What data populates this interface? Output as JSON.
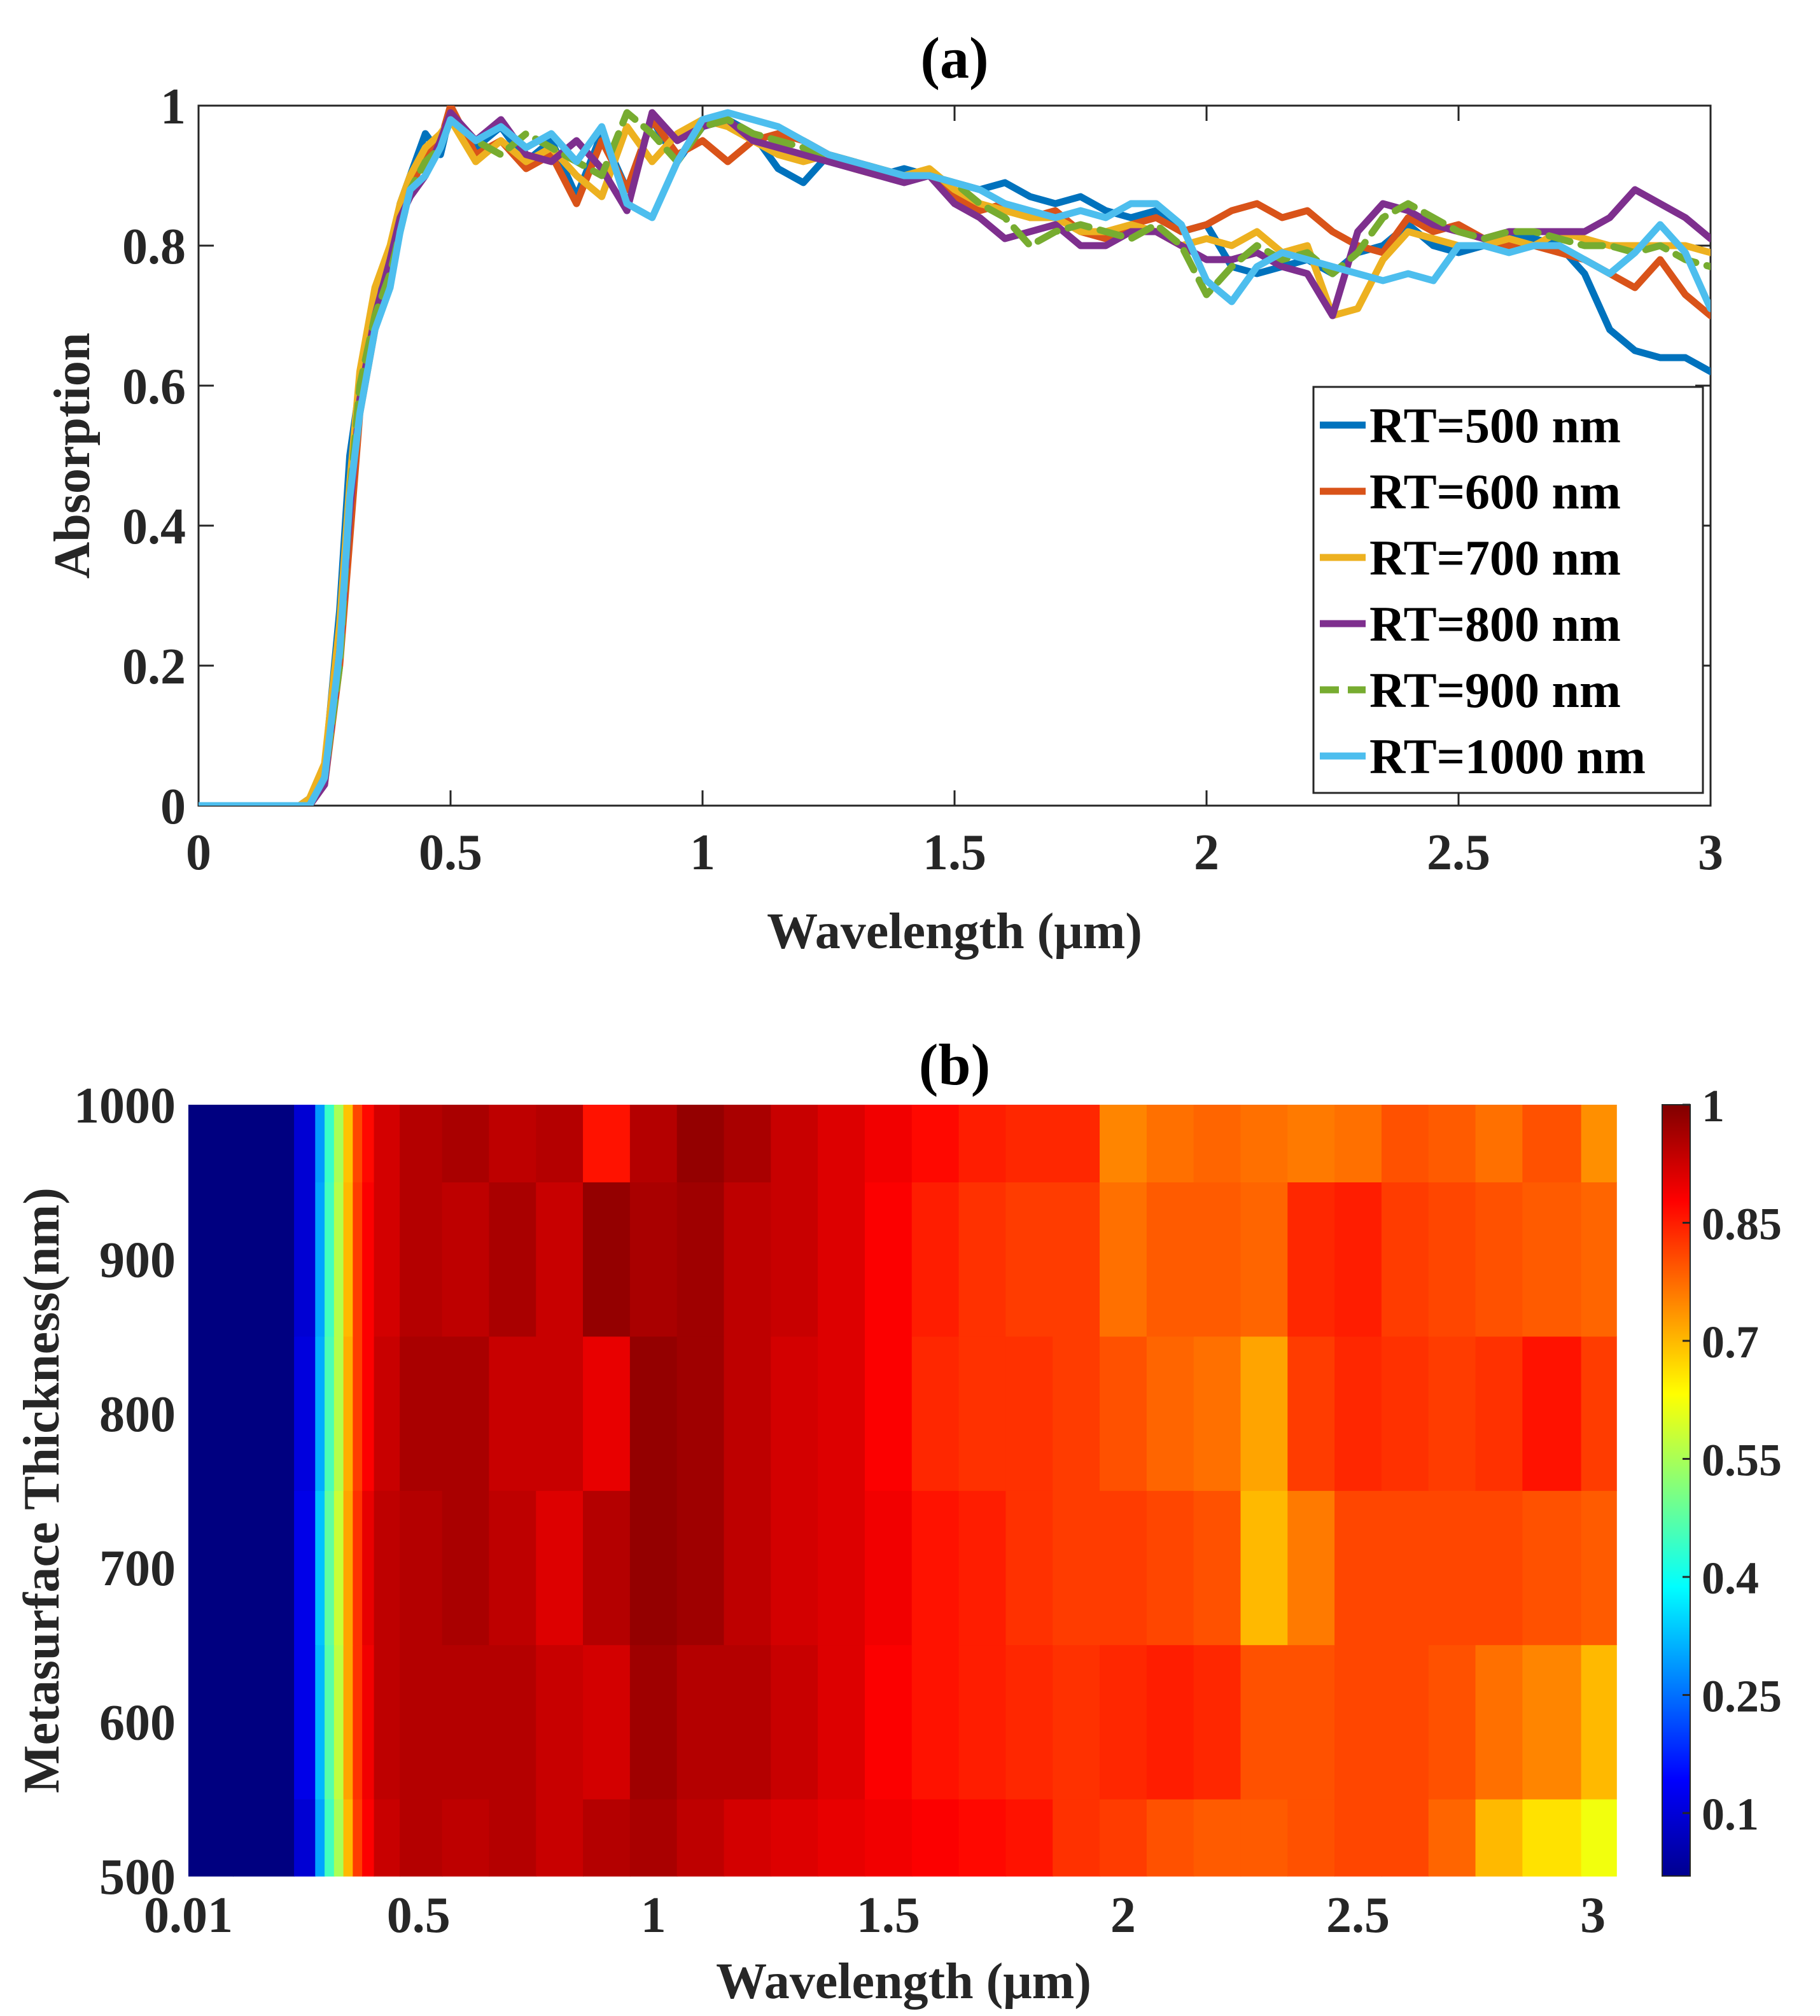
{
  "chart_data": [
    {
      "panel": "(a)",
      "type": "line",
      "title": "(a)",
      "xlabel": "Wavelength (μm)",
      "ylabel": "Absorption",
      "xlim": [
        0,
        3
      ],
      "ylim": [
        0,
        1
      ],
      "xticks": [
        0,
        0.5,
        1,
        1.5,
        2,
        2.5,
        3
      ],
      "xtick_labels": [
        "0",
        "0.5",
        "1",
        "1.5",
        "2",
        "2.5",
        "3"
      ],
      "yticks": [
        0,
        0.2,
        0.4,
        0.6,
        0.8,
        1
      ],
      "ytick_labels": [
        "0",
        "0.2",
        "0.4",
        "0.6",
        "0.8",
        "1"
      ],
      "grid": false,
      "legend_position": "bottom-right",
      "x": [
        0,
        0.2,
        0.22,
        0.25,
        0.28,
        0.3,
        0.32,
        0.35,
        0.38,
        0.4,
        0.42,
        0.45,
        0.48,
        0.5,
        0.55,
        0.6,
        0.65,
        0.7,
        0.75,
        0.8,
        0.85,
        0.9,
        0.95,
        1.0,
        1.05,
        1.1,
        1.15,
        1.2,
        1.25,
        1.3,
        1.35,
        1.4,
        1.45,
        1.5,
        1.55,
        1.6,
        1.65,
        1.7,
        1.75,
        1.8,
        1.85,
        1.9,
        1.95,
        2.0,
        2.05,
        2.1,
        2.15,
        2.2,
        2.25,
        2.3,
        2.35,
        2.4,
        2.45,
        2.5,
        2.55,
        2.6,
        2.65,
        2.7,
        2.75,
        2.8,
        2.85,
        2.9,
        2.95,
        3.0
      ],
      "series": [
        {
          "name": "RT=500 nm",
          "color": "#0072BD",
          "dash": "solid",
          "values": [
            0,
            0,
            0.01,
            0.05,
            0.28,
            0.5,
            0.6,
            0.72,
            0.78,
            0.86,
            0.9,
            0.96,
            0.93,
            0.99,
            0.94,
            0.97,
            0.92,
            0.95,
            0.87,
            0.96,
            0.88,
            0.98,
            0.92,
            0.97,
            0.98,
            0.96,
            0.91,
            0.89,
            0.93,
            0.92,
            0.9,
            0.91,
            0.9,
            0.89,
            0.88,
            0.89,
            0.87,
            0.86,
            0.87,
            0.85,
            0.84,
            0.85,
            0.82,
            0.83,
            0.77,
            0.76,
            0.77,
            0.78,
            0.76,
            0.79,
            0.8,
            0.83,
            0.8,
            0.79,
            0.8,
            0.81,
            0.81,
            0.8,
            0.76,
            0.68,
            0.65,
            0.64,
            0.64,
            0.62
          ]
        },
        {
          "name": "RT=600 nm",
          "color": "#D95319",
          "dash": "solid",
          "values": [
            0,
            0,
            0.0,
            0.03,
            0.2,
            0.38,
            0.56,
            0.68,
            0.76,
            0.84,
            0.88,
            0.93,
            0.95,
            1.0,
            0.93,
            0.95,
            0.91,
            0.93,
            0.86,
            0.95,
            0.88,
            0.98,
            0.93,
            0.95,
            0.92,
            0.95,
            0.96,
            0.95,
            0.93,
            0.92,
            0.91,
            0.9,
            0.9,
            0.87,
            0.85,
            0.86,
            0.84,
            0.85,
            0.82,
            0.81,
            0.83,
            0.84,
            0.82,
            0.83,
            0.85,
            0.86,
            0.84,
            0.85,
            0.82,
            0.8,
            0.79,
            0.84,
            0.82,
            0.83,
            0.81,
            0.8,
            0.8,
            0.79,
            0.78,
            0.76,
            0.74,
            0.78,
            0.73,
            0.7
          ]
        },
        {
          "name": "RT=700 nm",
          "color": "#EDB120",
          "dash": "solid",
          "values": [
            0,
            0,
            0.01,
            0.06,
            0.26,
            0.46,
            0.62,
            0.74,
            0.8,
            0.86,
            0.9,
            0.94,
            0.96,
            0.98,
            0.92,
            0.95,
            0.92,
            0.94,
            0.9,
            0.87,
            0.97,
            0.92,
            0.96,
            0.98,
            0.97,
            0.95,
            0.93,
            0.92,
            0.93,
            0.91,
            0.9,
            0.9,
            0.91,
            0.88,
            0.86,
            0.85,
            0.84,
            0.84,
            0.82,
            0.82,
            0.83,
            0.82,
            0.8,
            0.81,
            0.8,
            0.82,
            0.79,
            0.8,
            0.7,
            0.71,
            0.78,
            0.82,
            0.81,
            0.8,
            0.8,
            0.81,
            0.8,
            0.82,
            0.81,
            0.8,
            0.8,
            0.8,
            0.8,
            0.79
          ]
        },
        {
          "name": "RT=800 nm",
          "color": "#7E2F8E",
          "dash": "solid",
          "values": [
            0,
            0,
            0.0,
            0.03,
            0.22,
            0.42,
            0.58,
            0.7,
            0.78,
            0.84,
            0.87,
            0.9,
            0.95,
            0.99,
            0.95,
            0.98,
            0.93,
            0.92,
            0.95,
            0.91,
            0.85,
            0.99,
            0.95,
            0.97,
            0.98,
            0.95,
            0.94,
            0.93,
            0.92,
            0.91,
            0.9,
            0.89,
            0.9,
            0.86,
            0.84,
            0.81,
            0.82,
            0.83,
            0.8,
            0.8,
            0.82,
            0.82,
            0.8,
            0.78,
            0.78,
            0.79,
            0.77,
            0.76,
            0.7,
            0.82,
            0.86,
            0.85,
            0.83,
            0.82,
            0.81,
            0.82,
            0.82,
            0.82,
            0.82,
            0.84,
            0.88,
            0.86,
            0.84,
            0.81
          ]
        },
        {
          "name": "RT=900 nm",
          "color": "#77AC30",
          "dash": "dashed",
          "values": [
            0,
            0,
            0.0,
            0.04,
            0.2,
            0.44,
            0.6,
            0.7,
            0.76,
            0.82,
            0.88,
            0.92,
            0.94,
            0.98,
            0.95,
            0.93,
            0.96,
            0.94,
            0.92,
            0.9,
            0.99,
            0.96,
            0.92,
            0.97,
            0.98,
            0.96,
            0.95,
            0.94,
            0.93,
            0.92,
            0.91,
            0.9,
            0.9,
            0.89,
            0.86,
            0.84,
            0.8,
            0.82,
            0.83,
            0.82,
            0.81,
            0.83,
            0.8,
            0.73,
            0.77,
            0.8,
            0.78,
            0.79,
            0.76,
            0.79,
            0.84,
            0.86,
            0.84,
            0.82,
            0.81,
            0.82,
            0.82,
            0.81,
            0.8,
            0.8,
            0.79,
            0.8,
            0.78,
            0.77
          ]
        },
        {
          "name": "RT=1000 nm",
          "color": "#4DBEEE",
          "dash": "solid",
          "values": [
            0,
            0,
            0.0,
            0.04,
            0.22,
            0.44,
            0.56,
            0.68,
            0.74,
            0.82,
            0.88,
            0.9,
            0.94,
            0.98,
            0.95,
            0.97,
            0.94,
            0.96,
            0.92,
            0.97,
            0.86,
            0.84,
            0.92,
            0.98,
            0.99,
            0.98,
            0.97,
            0.95,
            0.93,
            0.92,
            0.91,
            0.9,
            0.9,
            0.89,
            0.88,
            0.86,
            0.85,
            0.84,
            0.85,
            0.84,
            0.86,
            0.86,
            0.83,
            0.75,
            0.72,
            0.77,
            0.79,
            0.78,
            0.77,
            0.76,
            0.75,
            0.76,
            0.75,
            0.8,
            0.8,
            0.79,
            0.8,
            0.8,
            0.78,
            0.76,
            0.79,
            0.83,
            0.79,
            0.71
          ]
        }
      ]
    },
    {
      "panel": "(b)",
      "type": "heatmap",
      "title": "(b)",
      "xlabel": "Wavelength (μm)",
      "ylabel": "Metasurface Thickness(nm)",
      "xlim": [
        0.01,
        3.05
      ],
      "ylim": [
        500,
        1000
      ],
      "xticks": [
        0.01,
        0.5,
        1,
        1.5,
        2,
        2.5,
        3
      ],
      "xtick_labels": [
        "0.01",
        "0.5",
        "1",
        "1.5",
        "2",
        "2.5",
        "3"
      ],
      "yticks": [
        500,
        600,
        700,
        800,
        900,
        1000
      ],
      "ytick_labels": [
        "500",
        "600",
        "700",
        "800",
        "900",
        "1000"
      ],
      "colormap": "jet",
      "colorbar_range": [
        0.02,
        1
      ],
      "colorbar_ticks": [
        0.1,
        0.25,
        0.4,
        0.55,
        0.7,
        0.85,
        1
      ],
      "colorbar_tick_labels": [
        "0.1",
        "0.25",
        "0.4",
        "0.55",
        "0.7",
        "0.85",
        "1"
      ],
      "x": [
        0.01,
        0.2,
        0.27,
        0.29,
        0.31,
        0.33,
        0.35,
        0.37,
        0.39,
        0.42,
        0.5,
        0.6,
        0.7,
        0.8,
        0.9,
        1.0,
        1.1,
        1.2,
        1.3,
        1.4,
        1.5,
        1.6,
        1.7,
        1.8,
        1.9,
        2.0,
        2.1,
        2.2,
        2.3,
        2.4,
        2.5,
        2.6,
        2.7,
        2.8,
        2.9,
        3.05
      ],
      "y": [
        500,
        600,
        700,
        800,
        900,
        1000
      ],
      "z": [
        [
          0.02,
          0.02,
          0.1,
          0.3,
          0.45,
          0.55,
          0.7,
          0.82,
          0.88,
          0.93,
          0.95,
          0.94,
          0.95,
          0.93,
          0.95,
          0.96,
          0.94,
          0.92,
          0.91,
          0.9,
          0.89,
          0.88,
          0.87,
          0.86,
          0.83,
          0.82,
          0.8,
          0.79,
          0.79,
          0.8,
          0.81,
          0.81,
          0.78,
          0.7,
          0.66,
          0.62
        ],
        [
          0.02,
          0.02,
          0.12,
          0.32,
          0.47,
          0.57,
          0.72,
          0.83,
          0.89,
          0.94,
          0.95,
          0.95,
          0.95,
          0.93,
          0.92,
          0.97,
          0.95,
          0.95,
          0.93,
          0.91,
          0.88,
          0.86,
          0.85,
          0.84,
          0.83,
          0.84,
          0.85,
          0.84,
          0.8,
          0.8,
          0.81,
          0.81,
          0.8,
          0.77,
          0.75,
          0.7
        ],
        [
          0.02,
          0.02,
          0.12,
          0.33,
          0.48,
          0.58,
          0.72,
          0.83,
          0.9,
          0.94,
          0.95,
          0.96,
          0.94,
          0.91,
          0.95,
          0.98,
          0.97,
          0.94,
          0.92,
          0.91,
          0.89,
          0.86,
          0.85,
          0.83,
          0.82,
          0.82,
          0.81,
          0.8,
          0.7,
          0.76,
          0.81,
          0.81,
          0.81,
          0.81,
          0.8,
          0.79
        ],
        [
          0.02,
          0.02,
          0.11,
          0.31,
          0.46,
          0.56,
          0.71,
          0.82,
          0.88,
          0.93,
          0.96,
          0.96,
          0.93,
          0.93,
          0.9,
          0.98,
          0.97,
          0.94,
          0.92,
          0.91,
          0.88,
          0.84,
          0.83,
          0.83,
          0.82,
          0.8,
          0.78,
          0.77,
          0.72,
          0.82,
          0.84,
          0.83,
          0.82,
          0.83,
          0.86,
          0.82
        ],
        [
          0.02,
          0.02,
          0.1,
          0.3,
          0.45,
          0.56,
          0.7,
          0.82,
          0.88,
          0.92,
          0.95,
          0.94,
          0.96,
          0.93,
          0.98,
          0.96,
          0.97,
          0.94,
          0.93,
          0.91,
          0.88,
          0.85,
          0.83,
          0.82,
          0.82,
          0.77,
          0.79,
          0.79,
          0.78,
          0.84,
          0.85,
          0.82,
          0.81,
          0.8,
          0.79,
          0.78
        ],
        [
          0.02,
          0.02,
          0.1,
          0.29,
          0.44,
          0.55,
          0.69,
          0.81,
          0.87,
          0.92,
          0.95,
          0.96,
          0.94,
          0.95,
          0.86,
          0.95,
          0.98,
          0.96,
          0.93,
          0.91,
          0.89,
          0.87,
          0.85,
          0.84,
          0.84,
          0.75,
          0.77,
          0.78,
          0.77,
          0.76,
          0.77,
          0.8,
          0.79,
          0.77,
          0.8,
          0.74
        ]
      ]
    }
  ]
}
